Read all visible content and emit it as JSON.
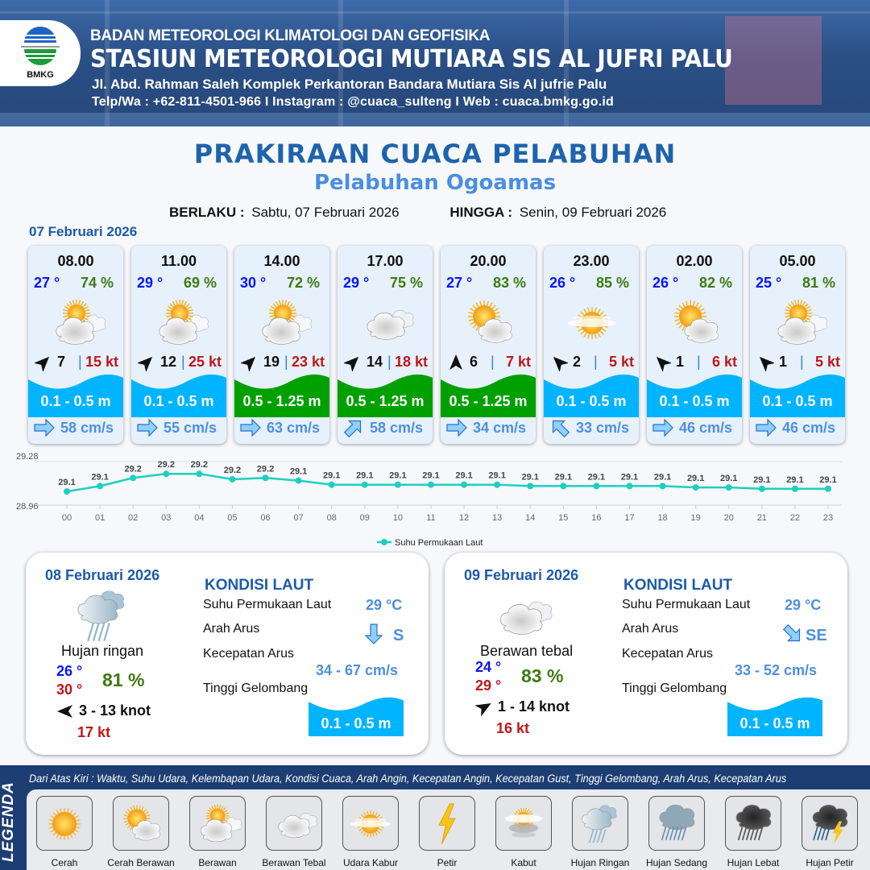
{
  "header": {
    "logo_text": "BMKG",
    "agency": "BADAN METEOROLOGI KLIMATOLOGI DAN GEOFISIKA",
    "station": "STASIUN METEOROLOGI MUTIARA SIS AL JUFRI PALU",
    "address": "Jl. Abd. Rahman Saleh Komplek Perkantoran Bandara Mutiara Sis Al jufrie Palu",
    "contact": "Telp/Wa : +62-811-4501-966  I  Instagram : @cuaca_sulteng  I  Web : cuaca.bmkg.go.id"
  },
  "title": "PRAKIRAAN CUACA PELABUHAN",
  "subtitle": "Pelabuhan Ogoamas",
  "validity": {
    "from_label": "BERLAKU :",
    "from_value": "Sabtu, 07 Februari 2026",
    "to_label": "HINGGA :",
    "to_value": "Senin, 09 Februari 2026"
  },
  "day1_date": "07 Februari 2026",
  "colors": {
    "wave_low": "#00b4ff",
    "wave_moderate": "#00a000",
    "temp": "#0a14ff",
    "humidity": "#3f7a12",
    "gust": "#c0161a",
    "current": "#4d8fe0",
    "accent": "#1c5ba8",
    "sst_line": "#1ecfbf"
  },
  "cards": [
    {
      "time": "08.00",
      "temp": "27 °",
      "humidity": "74 %",
      "weather": "berawan",
      "wind_dir_deg": 45,
      "wind_speed": "7",
      "gust": "15 kt",
      "wave": "0.1 - 0.5 m",
      "wave_level": "low",
      "current_dir_deg": 90,
      "current_speed": "58 cm/s"
    },
    {
      "time": "11.00",
      "temp": "29 °",
      "humidity": "69 %",
      "weather": "berawan",
      "wind_dir_deg": 45,
      "wind_speed": "12",
      "gust": "25 kt",
      "wave": "0.1 - 0.5 m",
      "wave_level": "low",
      "current_dir_deg": 90,
      "current_speed": "55 cm/s"
    },
    {
      "time": "14.00",
      "temp": "30 °",
      "humidity": "72 %",
      "weather": "berawan",
      "wind_dir_deg": 45,
      "wind_speed": "19",
      "gust": "23 kt",
      "wave": "0.5 - 1.25 m",
      "wave_level": "moderate",
      "current_dir_deg": 90,
      "current_speed": "63 cm/s"
    },
    {
      "time": "17.00",
      "temp": "29 °",
      "humidity": "75 %",
      "weather": "berawan-tebal",
      "wind_dir_deg": 45,
      "wind_speed": "14",
      "gust": "18 kt",
      "wave": "0.5 - 1.25 m",
      "wave_level": "moderate",
      "current_dir_deg": 45,
      "current_speed": "58 cm/s"
    },
    {
      "time": "20.00",
      "temp": "27 °",
      "humidity": "83 %",
      "weather": "cerah-berawan",
      "wind_dir_deg": 0,
      "wind_speed": "6",
      "gust": "7 kt",
      "wave": "0.5 - 1.25 m",
      "wave_level": "moderate",
      "current_dir_deg": 90,
      "current_speed": "34 cm/s"
    },
    {
      "time": "23.00",
      "temp": "26 °",
      "humidity": "85 %",
      "weather": "udara-kabur",
      "wind_dir_deg": -45,
      "wind_speed": "2",
      "gust": "5 kt",
      "wave": "0.1 - 0.5 m",
      "wave_level": "low",
      "current_dir_deg": -45,
      "current_speed": "33 cm/s"
    },
    {
      "time": "02.00",
      "temp": "26 °",
      "humidity": "82 %",
      "weather": "cerah-berawan",
      "wind_dir_deg": -45,
      "wind_speed": "1",
      "gust": "6 kt",
      "wave": "0.1 - 0.5 m",
      "wave_level": "low",
      "current_dir_deg": 90,
      "current_speed": "46 cm/s"
    },
    {
      "time": "05.00",
      "temp": "25 °",
      "humidity": "81 %",
      "weather": "berawan",
      "wind_dir_deg": -45,
      "wind_speed": "1",
      "gust": "5 kt",
      "wave": "0.1 - 0.5 m",
      "wave_level": "low",
      "current_dir_deg": 90,
      "current_speed": "46 cm/s"
    }
  ],
  "chart_data": {
    "type": "line",
    "categories": [
      "00",
      "01",
      "02",
      "03",
      "04",
      "05",
      "06",
      "07",
      "08",
      "09",
      "10",
      "11",
      "12",
      "13",
      "14",
      "15",
      "16",
      "17",
      "18",
      "19",
      "20",
      "21",
      "22",
      "23"
    ],
    "series": [
      {
        "name": "Suhu Permukaan Laut",
        "values": [
          29.06,
          29.1,
          29.16,
          29.19,
          29.19,
          29.15,
          29.16,
          29.14,
          29.11,
          29.11,
          29.11,
          29.11,
          29.11,
          29.11,
          29.1,
          29.1,
          29.1,
          29.1,
          29.1,
          29.09,
          29.09,
          29.08,
          29.08,
          29.08
        ],
        "labels": [
          "29.1",
          "29.1",
          "29.2",
          "29.2",
          "29.2",
          "29.2",
          "29.2",
          "29.1",
          "29.1",
          "29.1",
          "29.1",
          "29.1",
          "29.1",
          "29.1",
          "29.1",
          "29.1",
          "29.1",
          "29.1",
          "29.1",
          "29.1",
          "29.1",
          "29.1",
          "29.1",
          "29.1"
        ]
      }
    ],
    "yticks": [
      "28.96",
      "29.28"
    ],
    "ylim": [
      28.96,
      29.28
    ],
    "grid": true,
    "legend_position": "bottom"
  },
  "panels": [
    {
      "date": "08 Februari 2026",
      "weather": "hujan-ringan",
      "condition": "Hujan ringan",
      "temp_min": "26 °",
      "temp_max": "30 °",
      "humidity": "81 %",
      "wind_dir_deg": -90,
      "wind": "3  - 13 knot",
      "gust": "17 kt",
      "sea_title": "KONDISI LAUT",
      "sst_label": "Suhu Permukaan Laut",
      "sst": "29 °C",
      "current_dir_label": "Arah Arus",
      "current_dir_deg": 180,
      "current_dir": "S",
      "current_speed_label": "Kecepatan Arus",
      "current_speed": "34  - 67 cm/s",
      "wave_label": "Tinggi Gelombang",
      "wave": "0.1 - 0.5 m",
      "wave_level": "low"
    },
    {
      "date": "09 Februari 2026",
      "weather": "berawan-tebal",
      "condition": "Berawan tebal",
      "temp_min": "24 °",
      "temp_max": "29 °",
      "humidity": "83 %",
      "wind_dir_deg": 60,
      "wind": "1  - 14 knot",
      "gust": "16 kt",
      "sea_title": "KONDISI LAUT",
      "sst_label": "Suhu Permukaan Laut",
      "sst": "29 °C",
      "current_dir_label": "Arah Arus",
      "current_dir_deg": 135,
      "current_dir": "SE",
      "current_speed_label": "Kecepatan Arus",
      "current_speed": "33  - 52 cm/s",
      "wave_label": "Tinggi Gelombang",
      "wave": "0.1 - 0.5 m",
      "wave_level": "low"
    }
  ],
  "legend": {
    "title": "LEGENDA",
    "description": "Dari Atas Kiri : Waktu, Suhu Udara, Kelembapan Udara, Kondisi Cuaca, Arah Angin, Kecepatan Angin, Kecepatan Gust, Tinggi Gelombang, Arah Arus, Kecepatan Arus",
    "items": [
      {
        "icon": "cerah",
        "label": "Cerah"
      },
      {
        "icon": "cerah-berawan",
        "label": "Cerah Berawan"
      },
      {
        "icon": "berawan",
        "label": "Berawan"
      },
      {
        "icon": "berawan-tebal",
        "label": "Berawan Tebal"
      },
      {
        "icon": "udara-kabur",
        "label": "Udara Kabur"
      },
      {
        "icon": "petir",
        "label": "Petir"
      },
      {
        "icon": "kabut",
        "label": "Kabut"
      },
      {
        "icon": "hujan-ringan",
        "label": "Hujan Ringan"
      },
      {
        "icon": "hujan-sedang",
        "label": "Hujan Sedang"
      },
      {
        "icon": "hujan-lebat",
        "label": "Hujan Lebat"
      },
      {
        "icon": "hujan-petir",
        "label": "Hujan Petir"
      }
    ]
  }
}
